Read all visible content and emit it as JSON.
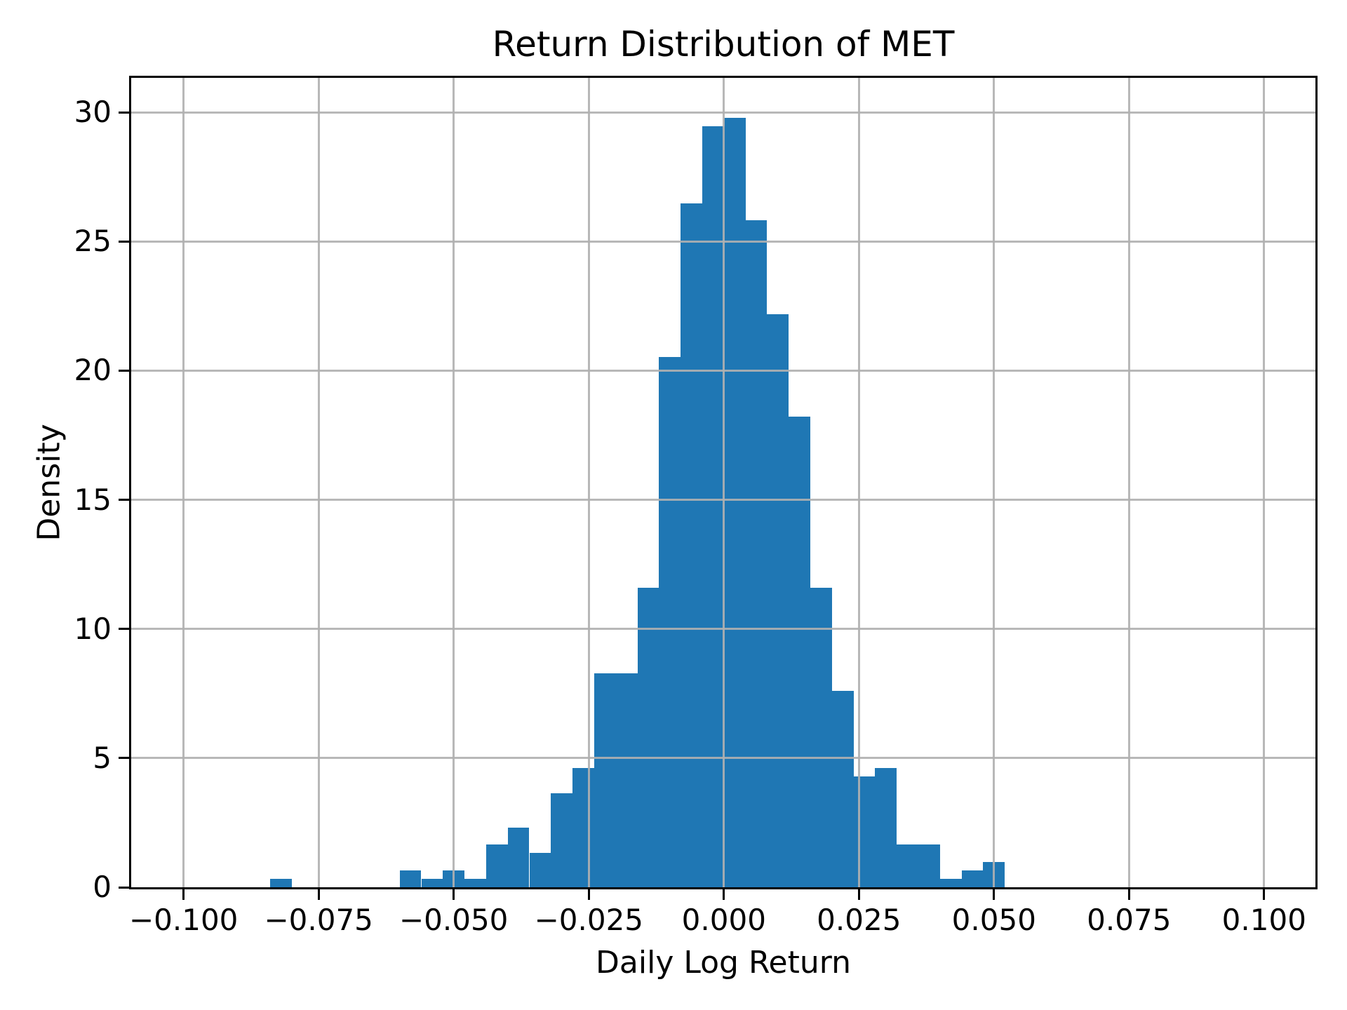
{
  "chart_data": {
    "type": "bar",
    "subtype": "histogram",
    "title": "Return Distribution of MET",
    "xlabel": "Daily Log Return",
    "ylabel": "Density",
    "bar_color": "#1f77b4",
    "grid_color": "#b0b0b0",
    "spine_color": "#000000",
    "grid_on": true,
    "grid_above_bars": true,
    "xlim": [
      -0.1097,
      0.1095
    ],
    "ylim": [
      0,
      31.33
    ],
    "bin_width": 0.004,
    "x_ticks": [
      {
        "value": -0.1,
        "label": "−0.100"
      },
      {
        "value": -0.075,
        "label": "−0.075"
      },
      {
        "value": -0.05,
        "label": "−0.050"
      },
      {
        "value": -0.025,
        "label": "−0.025"
      },
      {
        "value": 0.0,
        "label": "0.000"
      },
      {
        "value": 0.025,
        "label": "0.025"
      },
      {
        "value": 0.05,
        "label": "0.050"
      },
      {
        "value": 0.075,
        "label": "0.075"
      },
      {
        "value": 0.1,
        "label": "0.100"
      }
    ],
    "y_ticks": [
      {
        "value": 0,
        "label": "0"
      },
      {
        "value": 5,
        "label": "5"
      },
      {
        "value": 10,
        "label": "10"
      },
      {
        "value": 15,
        "label": "15"
      },
      {
        "value": 20,
        "label": "20"
      },
      {
        "value": 25,
        "label": "25"
      },
      {
        "value": 30,
        "label": "30"
      }
    ],
    "bins": [
      {
        "left": -0.084,
        "height": 0.33
      },
      {
        "left": -0.08,
        "height": 0
      },
      {
        "left": -0.076,
        "height": 0
      },
      {
        "left": -0.072,
        "height": 0
      },
      {
        "left": -0.068,
        "height": 0
      },
      {
        "left": -0.064,
        "height": 0
      },
      {
        "left": -0.06,
        "height": 0.66
      },
      {
        "left": -0.056,
        "height": 0.33
      },
      {
        "left": -0.052,
        "height": 0.66
      },
      {
        "left": -0.048,
        "height": 0.33
      },
      {
        "left": -0.044,
        "height": 1.66
      },
      {
        "left": -0.04,
        "height": 2.32
      },
      {
        "left": -0.036,
        "height": 1.32
      },
      {
        "left": -0.032,
        "height": 3.64
      },
      {
        "left": -0.028,
        "height": 4.63
      },
      {
        "left": -0.024,
        "height": 8.28
      },
      {
        "left": -0.02,
        "height": 8.28
      },
      {
        "left": -0.016,
        "height": 11.59
      },
      {
        "left": -0.012,
        "height": 20.52
      },
      {
        "left": -0.008,
        "height": 26.48
      },
      {
        "left": -0.004,
        "height": 29.46
      },
      {
        "left": 0.0,
        "height": 29.79
      },
      {
        "left": 0.004,
        "height": 25.82
      },
      {
        "left": 0.008,
        "height": 22.18
      },
      {
        "left": 0.012,
        "height": 18.21
      },
      {
        "left": 0.016,
        "height": 11.59
      },
      {
        "left": 0.02,
        "height": 7.61
      },
      {
        "left": 0.024,
        "height": 4.3
      },
      {
        "left": 0.028,
        "height": 4.63
      },
      {
        "left": 0.032,
        "height": 1.66
      },
      {
        "left": 0.036,
        "height": 1.66
      },
      {
        "left": 0.04,
        "height": 0.33
      },
      {
        "left": 0.044,
        "height": 0.66
      },
      {
        "left": 0.048,
        "height": 0.99
      }
    ]
  }
}
